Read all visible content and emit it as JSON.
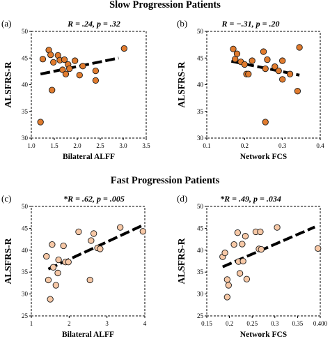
{
  "figure": {
    "group_titles": [
      "Slow Progression Patients",
      "Fast Progression Patients"
    ]
  },
  "chart_data": [
    {
      "type": "scatter",
      "panel": "(a)",
      "stat_text": "R = .24, p = .32",
      "xlabel": "Bilateral ALFF",
      "ylabel": "ALSFRS-R",
      "xlim": [
        1.0,
        3.5
      ],
      "ylim": [
        30,
        50
      ],
      "xticks": [
        1.0,
        1.5,
        2.0,
        2.5,
        3.0,
        3.5
      ],
      "xtick_labels": [
        "1.0",
        "1.5",
        "2.0",
        "2.5",
        "3.0",
        "3.5"
      ],
      "yticks": [
        30,
        35,
        40,
        45,
        50
      ],
      "ytick_labels": [
        "30",
        "35",
        "40",
        "45",
        "50"
      ],
      "marker_color": "#e07b2e",
      "points": [
        {
          "x": 1.2,
          "y": 33
        },
        {
          "x": 1.25,
          "y": 44.8
        },
        {
          "x": 1.38,
          "y": 46.5
        },
        {
          "x": 1.42,
          "y": 45.6
        },
        {
          "x": 1.48,
          "y": 44.2
        },
        {
          "x": 1.45,
          "y": 39
        },
        {
          "x": 1.58,
          "y": 45.5
        },
        {
          "x": 1.62,
          "y": 44.6
        },
        {
          "x": 1.68,
          "y": 42.8
        },
        {
          "x": 1.72,
          "y": 44.7
        },
        {
          "x": 1.75,
          "y": 42
        },
        {
          "x": 1.8,
          "y": 43.8
        },
        {
          "x": 1.83,
          "y": 43
        },
        {
          "x": 1.95,
          "y": 44.5
        },
        {
          "x": 2.05,
          "y": 41.8
        },
        {
          "x": 2.12,
          "y": 43.5
        },
        {
          "x": 2.4,
          "y": 42.6
        },
        {
          "x": 2.4,
          "y": 40.8
        },
        {
          "x": 3.02,
          "y": 46.8
        }
      ],
      "trend": [
        {
          "x": 1.2,
          "y": 42.0
        },
        {
          "x": 2.9,
          "y": 45.0
        }
      ]
    },
    {
      "type": "scatter",
      "panel": "(b)",
      "stat_text": "R = −.31, p = .20",
      "xlabel": "Network FCS",
      "ylabel": "ALSFRS-R",
      "xlim": [
        0.1,
        0.4
      ],
      "ylim": [
        30,
        50
      ],
      "xticks": [
        0.1,
        0.2,
        0.3,
        0.4
      ],
      "xtick_labels": [
        "0.1",
        "0.2",
        "0.3",
        "0.4"
      ],
      "yticks": [
        30,
        35,
        40,
        45,
        50
      ],
      "ytick_labels": [
        "30",
        "35",
        "40",
        "45",
        "50"
      ],
      "marker_color": "#e07b2e",
      "points": [
        {
          "x": 0.17,
          "y": 46.7
        },
        {
          "x": 0.175,
          "y": 44.8
        },
        {
          "x": 0.18,
          "y": 45.8
        },
        {
          "x": 0.19,
          "y": 44.3
        },
        {
          "x": 0.2,
          "y": 43.8
        },
        {
          "x": 0.205,
          "y": 42
        },
        {
          "x": 0.21,
          "y": 42
        },
        {
          "x": 0.22,
          "y": 44.5
        },
        {
          "x": 0.25,
          "y": 46.2
        },
        {
          "x": 0.255,
          "y": 43
        },
        {
          "x": 0.255,
          "y": 33
        },
        {
          "x": 0.26,
          "y": 44.7
        },
        {
          "x": 0.28,
          "y": 43.4
        },
        {
          "x": 0.29,
          "y": 42.6
        },
        {
          "x": 0.3,
          "y": 41
        },
        {
          "x": 0.3,
          "y": 44.5
        },
        {
          "x": 0.32,
          "y": 42
        },
        {
          "x": 0.34,
          "y": 38.8
        },
        {
          "x": 0.345,
          "y": 47
        }
      ],
      "trend": [
        {
          "x": 0.165,
          "y": 44.4
        },
        {
          "x": 0.345,
          "y": 41.8
        }
      ]
    },
    {
      "type": "scatter",
      "panel": "(c)",
      "stat_text": "*R = .62, p = .005",
      "xlabel": "Bilateral ALFF",
      "ylabel": "ALSFRS-R",
      "xlim": [
        1,
        4
      ],
      "ylim": [
        25,
        50
      ],
      "xticks": [
        1,
        2,
        3,
        4
      ],
      "xtick_labels": [
        "1",
        "2",
        "3",
        "4"
      ],
      "yticks": [
        25,
        30,
        35,
        40,
        45,
        50
      ],
      "ytick_labels": [
        "25",
        "30",
        "35",
        "40",
        "45",
        "50"
      ],
      "marker_color": "#f7c8a6",
      "points": [
        {
          "x": 1.4,
          "y": 38.6
        },
        {
          "x": 1.45,
          "y": 33.2
        },
        {
          "x": 1.5,
          "y": 28.8
        },
        {
          "x": 1.55,
          "y": 41.3
        },
        {
          "x": 1.58,
          "y": 36.1
        },
        {
          "x": 1.65,
          "y": 32
        },
        {
          "x": 1.7,
          "y": 34.8
        },
        {
          "x": 1.72,
          "y": 37.8
        },
        {
          "x": 1.85,
          "y": 41
        },
        {
          "x": 1.9,
          "y": 37.3
        },
        {
          "x": 1.98,
          "y": 37.3
        },
        {
          "x": 2.25,
          "y": 44.2
        },
        {
          "x": 2.55,
          "y": 33.2
        },
        {
          "x": 2.58,
          "y": 42.2
        },
        {
          "x": 2.65,
          "y": 43.8
        },
        {
          "x": 2.75,
          "y": 40.5
        },
        {
          "x": 2.82,
          "y": 40.3
        },
        {
          "x": 3.35,
          "y": 45.2
        },
        {
          "x": 3.95,
          "y": 44.3
        }
      ],
      "trend": [
        {
          "x": 1.45,
          "y": 35.7
        },
        {
          "x": 3.95,
          "y": 45.7
        }
      ]
    },
    {
      "type": "scatter",
      "panel": "(d)",
      "stat_text": "*R = .49, p = .034",
      "xlabel": "Network FCS",
      "ylabel": "ALSFRS-R",
      "xlim": [
        0.15,
        0.4
      ],
      "ylim": [
        25,
        50
      ],
      "xticks": [
        0.15,
        0.2,
        0.25,
        0.3,
        0.35,
        0.4
      ],
      "xtick_labels": [
        "0.15",
        "0.2",
        "0.25",
        "0.3",
        "0.35",
        "0.400"
      ],
      "yticks": [
        25,
        30,
        35,
        40,
        45,
        50
      ],
      "ytick_labels": [
        "25",
        "30",
        "35",
        "40",
        "45",
        "50"
      ],
      "marker_color": "#f7c8a6",
      "points": [
        {
          "x": 0.185,
          "y": 38.5
        },
        {
          "x": 0.19,
          "y": 39.4
        },
        {
          "x": 0.195,
          "y": 33.3
        },
        {
          "x": 0.195,
          "y": 29.3
        },
        {
          "x": 0.198,
          "y": 32
        },
        {
          "x": 0.21,
          "y": 41.3
        },
        {
          "x": 0.218,
          "y": 44
        },
        {
          "x": 0.22,
          "y": 37.4
        },
        {
          "x": 0.223,
          "y": 34.7
        },
        {
          "x": 0.228,
          "y": 41.4
        },
        {
          "x": 0.23,
          "y": 37.5
        },
        {
          "x": 0.235,
          "y": 43.2
        },
        {
          "x": 0.238,
          "y": 33.4
        },
        {
          "x": 0.258,
          "y": 44.2
        },
        {
          "x": 0.265,
          "y": 40.3
        },
        {
          "x": 0.268,
          "y": 44.2
        },
        {
          "x": 0.27,
          "y": 40.2
        },
        {
          "x": 0.305,
          "y": 45.2
        },
        {
          "x": 0.395,
          "y": 40.4
        }
      ],
      "trend": [
        {
          "x": 0.185,
          "y": 36.2
        },
        {
          "x": 0.388,
          "y": 45.3
        }
      ]
    }
  ]
}
